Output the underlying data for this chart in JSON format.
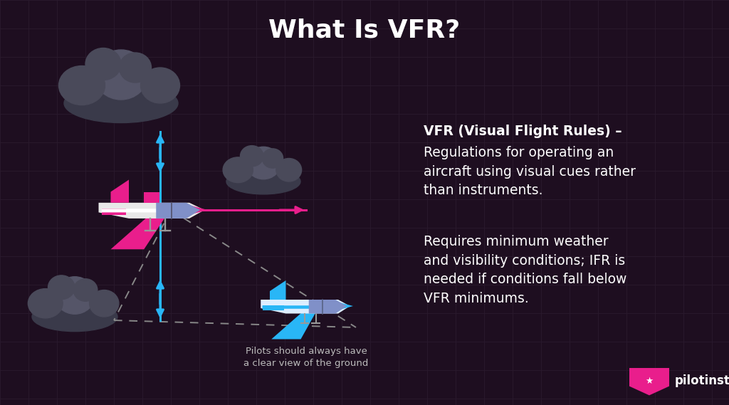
{
  "bg_color": "#1e0e20",
  "grid_color": "#2a1a2e",
  "title": "What Is VFR?",
  "title_color": "#ffffff",
  "title_fontsize": 26,
  "arrow_blue": "#29b6f6",
  "arrow_pink": "#e91e8c",
  "arrow_lw": 2.2,
  "dashed_color": "#888888",
  "text_color": "#ffffff",
  "text_gray": "#cccccc",
  "vfr_bold": "VFR (Visual Flight Rules) –",
  "vfr_normal": "Regulations for operating an\naircraft using visual cues rather\nthan instruments.",
  "requires_text": "Requires minimum weather\nand visibility conditions; IFR is\nneeded if conditions fall below\nVFR minimums.",
  "caption": "Pilots should always have\na clear view of the ground",
  "logo_text": "pilotinstitute",
  "cloud_dark": "#3a3a4a",
  "cloud_mid": "#4a4a5a",
  "cloud_light": "#555568"
}
